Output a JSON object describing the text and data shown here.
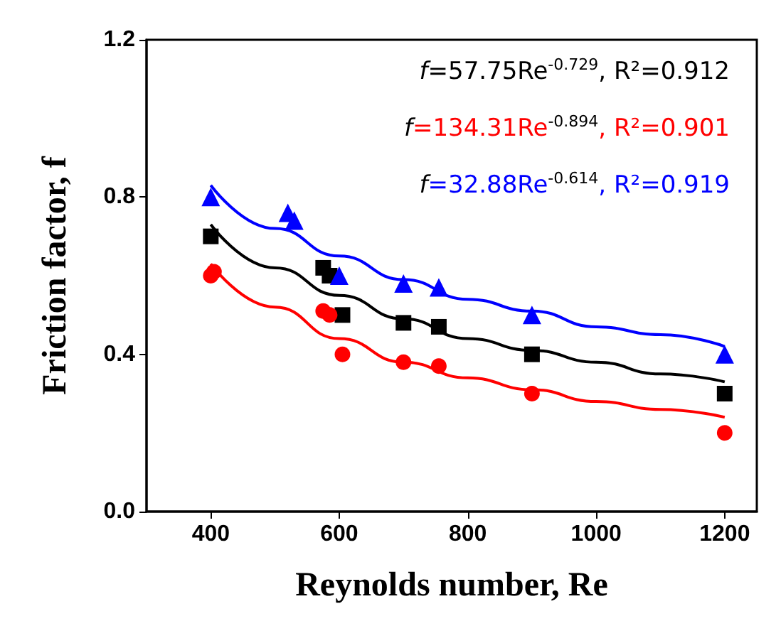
{
  "chart_data": {
    "type": "scatter",
    "xlabel": "Reynolds number, Re",
    "ylabel": "Friction factor, f",
    "xlim": [
      300,
      1250
    ],
    "xticks": [
      400,
      600,
      800,
      1000,
      1200
    ],
    "ylim": [
      0,
      1.2
    ],
    "yticks": [
      {
        "value": 0,
        "label": "0.0"
      },
      {
        "value": 0.4,
        "label": "0.4"
      },
      {
        "value": 0.8,
        "label": "0.8"
      },
      {
        "value": 1.2,
        "label": "1.2"
      }
    ],
    "grid": false,
    "series": [
      {
        "color": "#000000",
        "marker": "square",
        "x": [
          400,
          575,
          585,
          605,
          700,
          755,
          900,
          1200
        ],
        "values": [
          0.7,
          0.62,
          0.6,
          0.5,
          0.48,
          0.47,
          0.4,
          0.3
        ]
      },
      {
        "color": "#ff0000",
        "marker": "circle",
        "x": [
          400,
          405,
          575,
          585,
          605,
          700,
          755,
          900,
          1200
        ],
        "values": [
          0.6,
          0.61,
          0.51,
          0.5,
          0.4,
          0.38,
          0.37,
          0.3,
          0.2
        ]
      },
      {
        "color": "#0000ff",
        "marker": "triangle",
        "x": [
          400,
          520,
          530,
          600,
          700,
          755,
          900,
          1200
        ],
        "values": [
          0.8,
          0.76,
          0.74,
          0.6,
          0.58,
          0.57,
          0.5,
          0.4
        ]
      },
      {
        "type": "line",
        "color": "#000000",
        "marker": "none",
        "x": [
          400,
          500,
          600,
          700,
          800,
          900,
          1000,
          1100,
          1200
        ],
        "values": [
          0.73,
          0.62,
          0.55,
          0.49,
          0.44,
          0.41,
          0.38,
          0.35,
          0.33
        ]
      },
      {
        "type": "line",
        "color": "#ff0000",
        "marker": "none",
        "x": [
          400,
          500,
          600,
          700,
          800,
          900,
          1000,
          1100,
          1200
        ],
        "values": [
          0.63,
          0.52,
          0.44,
          0.38,
          0.34,
          0.31,
          0.28,
          0.26,
          0.24
        ]
      },
      {
        "type": "line",
        "color": "#0000ff",
        "marker": "none",
        "x": [
          400,
          500,
          600,
          700,
          800,
          900,
          1000,
          1100,
          1200
        ],
        "values": [
          0.83,
          0.72,
          0.65,
          0.59,
          0.54,
          0.51,
          0.47,
          0.45,
          0.42
        ]
      }
    ],
    "annotations": [
      "f=57.75Re$^{-0.729}$, R²=0.912",
      "f=134.31Re$^{-0.894}$, R²=0.901",
      "f=32.88Re$^{-0.614}$, R²=0.919"
    ]
  }
}
